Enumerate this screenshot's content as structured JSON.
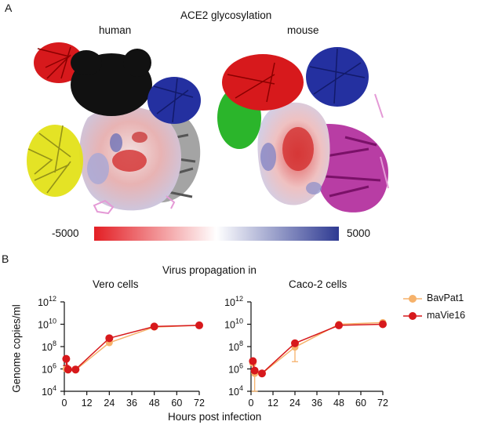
{
  "panel_a": {
    "letter": "A",
    "title": "ACE2 glycosylation",
    "human_label": "human",
    "mouse_label": "mouse",
    "colorbar": {
      "min_label": "-5000",
      "max_label": "5000",
      "colors": [
        "#e31e24",
        "#ffffff",
        "#2e3a92"
      ]
    },
    "glycan_colors": {
      "red": "#d7191c",
      "black": "#111111",
      "blue": "#2430a0",
      "yellow": "#e3e21a",
      "green": "#2bb52b",
      "magenta": "#b0289a",
      "gray": "#8a8a8a",
      "pink": "#e49ad6"
    }
  },
  "panel_b": {
    "letter": "B",
    "title": "Virus propagation in",
    "ylabel": "Genome copies/ml",
    "xlabel": "Hours post infection",
    "legend": [
      {
        "name": "BavPat1",
        "color": "#f6b26b"
      },
      {
        "name": "maVie16",
        "color": "#d7191c"
      }
    ]
  },
  "chart_data": [
    {
      "type": "line",
      "title": "Vero cells",
      "xlabel": "Hours post infection",
      "ylabel": "Genome copies/ml",
      "yscale": "log",
      "xlim": [
        0,
        72
      ],
      "ylim_exp": [
        4,
        12
      ],
      "xticks": [
        0,
        12,
        24,
        36,
        48,
        60,
        72
      ],
      "yticks": [
        {
          "base": "10",
          "exp": "4"
        },
        {
          "base": "10",
          "exp": "6"
        },
        {
          "base": "10",
          "exp": "8"
        },
        {
          "base": "10",
          "exp": "10"
        },
        {
          "base": "10",
          "exp": "12"
        }
      ],
      "series": [
        {
          "name": "BavPat1",
          "color": "#f6b26b",
          "x": [
            1,
            2,
            6,
            24,
            48,
            72
          ],
          "y_exp": [
            6.0,
            5.9,
            5.9,
            8.35,
            9.75,
            9.9
          ],
          "err_low": [],
          "err_high": []
        },
        {
          "name": "maVie16",
          "color": "#d7191c",
          "x": [
            1,
            2,
            6,
            24,
            48,
            72
          ],
          "y_exp": [
            6.9,
            5.95,
            5.95,
            8.75,
            9.8,
            9.9
          ],
          "err_low": [
            0.6,
            0,
            0,
            0,
            0,
            0
          ],
          "err_high": [
            0,
            0,
            0,
            0,
            0,
            0
          ]
        }
      ]
    },
    {
      "type": "line",
      "title": "Caco-2 cells",
      "xlabel": "Hours post infection",
      "ylabel": "Genome copies/ml",
      "yscale": "log",
      "xlim": [
        0,
        72
      ],
      "ylim_exp": [
        4,
        12
      ],
      "xticks": [
        0,
        12,
        24,
        36,
        48,
        60,
        72
      ],
      "yticks": [
        {
          "base": "10",
          "exp": "4"
        },
        {
          "base": "10",
          "exp": "6"
        },
        {
          "base": "10",
          "exp": "8"
        },
        {
          "base": "10",
          "exp": "10"
        },
        {
          "base": "10",
          "exp": "12"
        }
      ],
      "series": [
        {
          "name": "BavPat1",
          "color": "#f6b26b",
          "x": [
            1,
            2,
            6,
            24,
            48,
            72
          ],
          "y_exp": [
            6.5,
            5.6,
            5.6,
            7.95,
            10.0,
            10.15
          ],
          "err_low": [
            0,
            1.6,
            0,
            1.3,
            0,
            0
          ],
          "err_high": [
            0,
            0,
            0,
            0,
            0,
            0
          ]
        },
        {
          "name": "maVie16",
          "color": "#d7191c",
          "x": [
            1,
            2,
            6,
            24,
            48,
            72
          ],
          "y_exp": [
            6.7,
            5.85,
            5.6,
            8.3,
            9.9,
            10.0
          ],
          "err_low": [
            0,
            0,
            0,
            0,
            0,
            0
          ],
          "err_high": [
            0,
            0,
            0,
            0,
            0,
            0
          ]
        }
      ]
    }
  ]
}
